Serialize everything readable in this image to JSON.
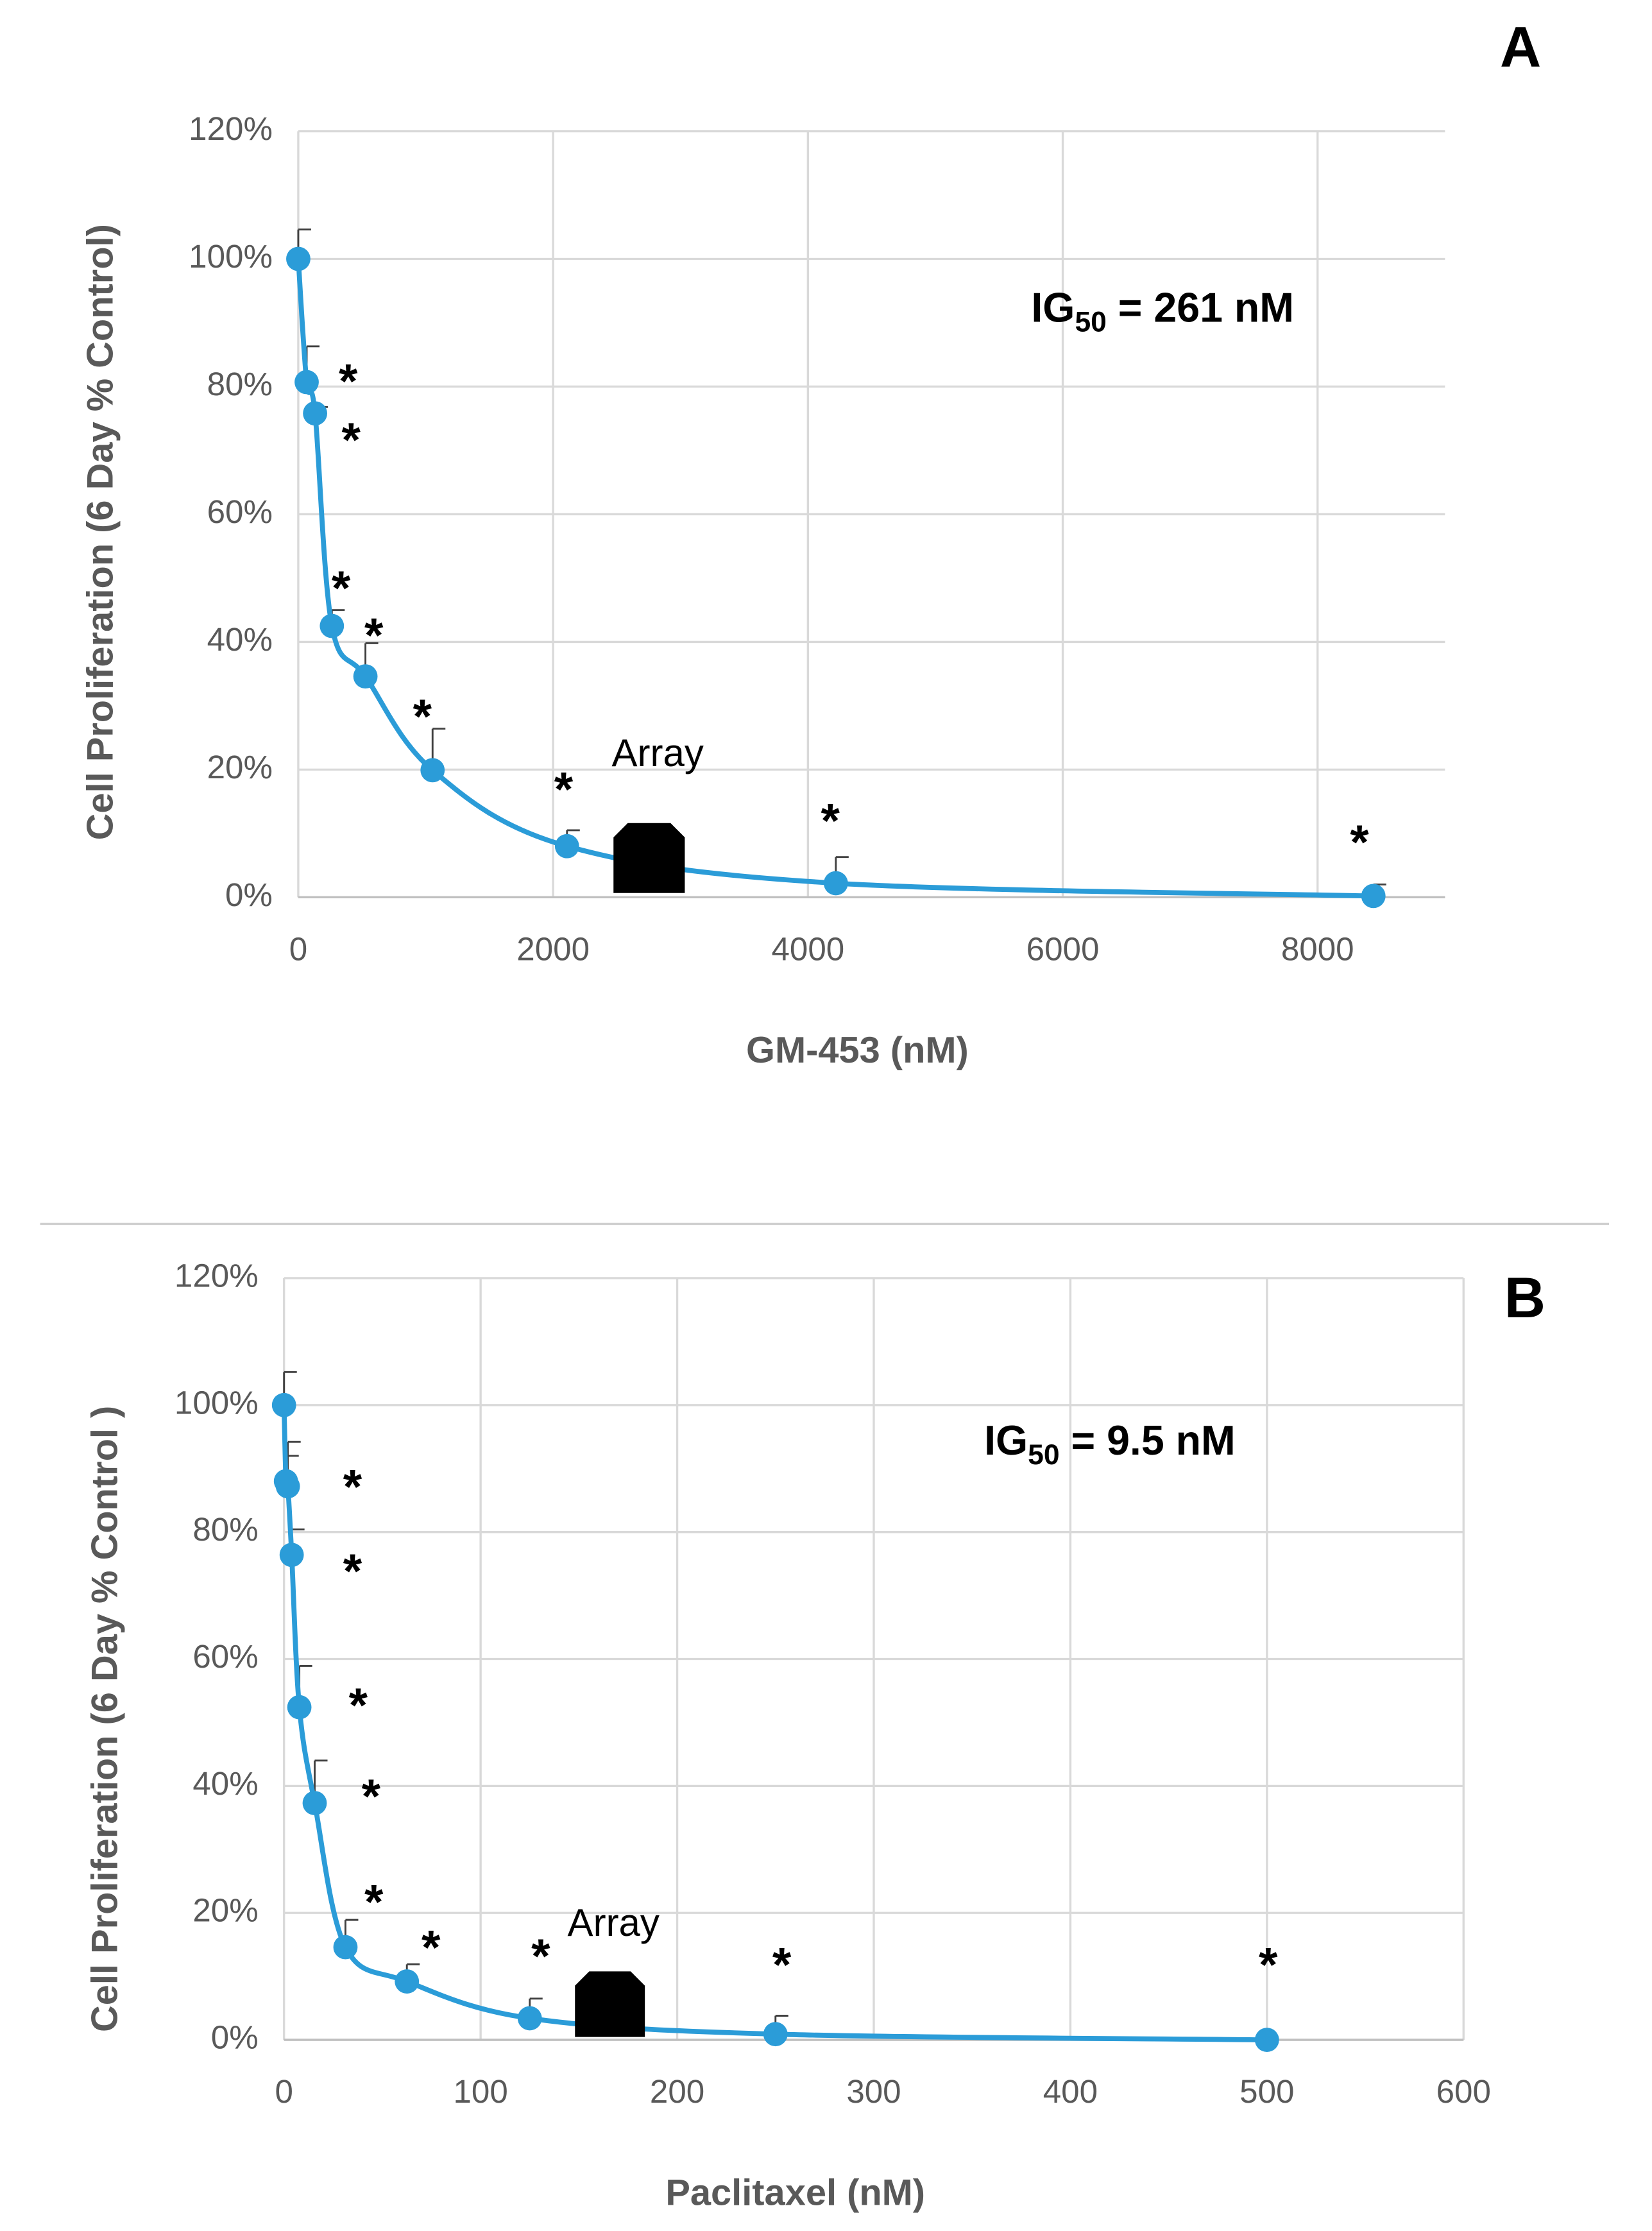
{
  "chart_data": [
    {
      "type": "scatter",
      "panel_label": "A",
      "x_label": "GM-453 (nM)",
      "y_label": "Cell Proliferation (6 Day % Control)",
      "x": [
        0,
        65.9,
        131.8,
        263.7,
        527,
        1054,
        2109,
        4219,
        8438
      ],
      "values": [
        100,
        80.7,
        75.8,
        42.5,
        34.6,
        19.9,
        8.0,
        2.2,
        0.2
      ],
      "errors": [
        4.6,
        5.6,
        1,
        2.5,
        5.2,
        6.5,
        2.5,
        4.1,
        1.8
      ],
      "color": "#2b9cd8",
      "xlim": [
        0,
        9000
      ],
      "xticks": [
        0,
        2000,
        4000,
        6000,
        8000
      ],
      "ylim": [
        0,
        120
      ],
      "yticks": [
        {
          "value": 0,
          "label": "0%"
        },
        {
          "value": 20,
          "label": "20%"
        },
        {
          "value": 40,
          "label": "40%"
        },
        {
          "value": 60,
          "label": "60%"
        },
        {
          "value": 80,
          "label": "80%"
        },
        {
          "value": 100,
          "label": "100%"
        },
        {
          "value": 120,
          "label": "120%"
        }
      ],
      "grid": true,
      "ig50": [
        "IG",
        "50",
        " = 261 nM"
      ],
      "array_label": "Array",
      "significance": [
        "*",
        "*",
        "*",
        "*",
        "*",
        "*",
        "*",
        "*"
      ]
    },
    {
      "type": "scatter",
      "panel_label": "B",
      "x_label": "Paclitaxel (nM)",
      "y_label": "Cell Proliferation (6 Day % Control )",
      "x": [
        0,
        0.98,
        1.95,
        3.9,
        7.8,
        15.6,
        31.25,
        62.5,
        125,
        250,
        500
      ],
      "values": [
        100,
        88,
        87.2,
        76.4,
        52.4,
        37.3,
        14.6,
        9.2,
        3.4,
        0.9,
        0
      ],
      "errors": [
        5.2,
        4,
        7,
        4,
        6.5,
        6.7,
        4.3,
        2.7,
        3.1,
        2.9,
        null
      ],
      "color": "#2b9cd8",
      "xlim": [
        0,
        600
      ],
      "xticks": [
        0,
        100,
        200,
        300,
        400,
        500,
        600
      ],
      "ylim": [
        0,
        120
      ],
      "yticks": [
        {
          "value": 0,
          "label": "0%"
        },
        {
          "value": 20,
          "label": "20%"
        },
        {
          "value": 40,
          "label": "40%"
        },
        {
          "value": 60,
          "label": "60%"
        },
        {
          "value": 80,
          "label": "80%"
        },
        {
          "value": 100,
          "label": "100%"
        },
        {
          "value": 120,
          "label": "120%"
        }
      ],
      "grid": true,
      "ig50": [
        "IG",
        "50",
        " = 9.5 nM"
      ],
      "array_label": "Array",
      "significance": [
        "*",
        "*",
        "*",
        "*",
        "*",
        "*",
        "*",
        "*",
        "*"
      ]
    }
  ]
}
